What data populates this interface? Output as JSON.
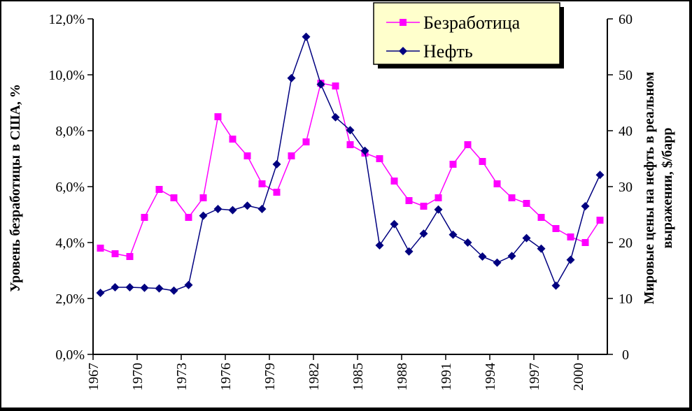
{
  "chart_data": {
    "type": "line",
    "title": "",
    "xlabel": "",
    "ylabel": "Уровень безработицы в США, %",
    "y2label_line1": "Мировые цены на нефть в реальном",
    "y2label_line2": "выражении, $/барр",
    "x": [
      1967,
      1968,
      1969,
      1970,
      1971,
      1972,
      1973,
      1974,
      1975,
      1976,
      1977,
      1978,
      1979,
      1980,
      1981,
      1982,
      1983,
      1984,
      1985,
      1986,
      1987,
      1988,
      1989,
      1990,
      1991,
      1992,
      1993,
      1994,
      1995,
      1996,
      1997,
      1998,
      1999,
      2000,
      2001
    ],
    "x_tick_labels": [
      "1967",
      "1970",
      "1973",
      "1976",
      "1979",
      "1982",
      "1985",
      "1988",
      "1991",
      "1994",
      "1997",
      "2000"
    ],
    "y_tick_labels": [
      "0,0%",
      "2,0%",
      "4,0%",
      "6,0%",
      "8,0%",
      "10,0%",
      "12,0%"
    ],
    "y2_tick_labels": [
      "0",
      "10",
      "20",
      "30",
      "40",
      "50",
      "60"
    ],
    "ylim": [
      0,
      12
    ],
    "y2lim": [
      0,
      60
    ],
    "grid": false,
    "legend_position": "top-right",
    "series": [
      {
        "name": "Безработица",
        "axis": "left",
        "color": "#ff00ff",
        "marker": "square",
        "values": [
          3.8,
          3.6,
          3.5,
          4.9,
          5.9,
          5.6,
          4.9,
          5.6,
          8.5,
          7.7,
          7.1,
          6.1,
          5.8,
          7.1,
          7.6,
          9.7,
          9.6,
          7.5,
          7.2,
          7.0,
          6.2,
          5.5,
          5.3,
          5.6,
          6.8,
          7.5,
          6.9,
          6.1,
          5.6,
          5.4,
          4.9,
          4.5,
          4.2,
          4.0,
          4.8
        ]
      },
      {
        "name": "Нефть",
        "axis": "right",
        "color": "#000080",
        "marker": "diamond",
        "values": [
          11.0,
          12.0,
          12.0,
          11.9,
          11.8,
          11.4,
          12.4,
          24.8,
          26.0,
          25.8,
          26.6,
          26.0,
          34.0,
          49.4,
          56.8,
          48.3,
          42.4,
          40.1,
          36.4,
          19.5,
          23.3,
          18.4,
          21.6,
          25.9,
          21.4,
          20.0,
          17.5,
          16.4,
          17.6,
          20.8,
          18.9,
          12.3,
          16.9,
          26.5,
          32.1
        ]
      }
    ]
  }
}
